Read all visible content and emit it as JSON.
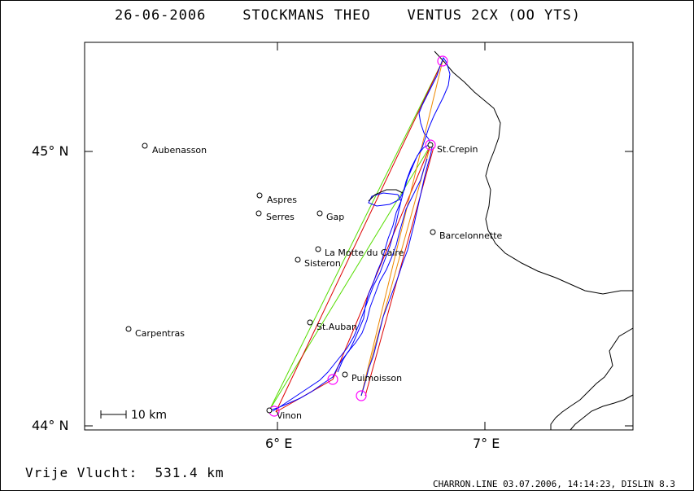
{
  "title": "26-06-2006    STOCKMANS THEO    VENTUS 2CX (OO YTS)",
  "footer": {
    "distance": "Vrije Vlucht:  531.4 km",
    "info": "CHARRON.LINE 03.07.2006, 14:14:23, DISLIN 8.3"
  },
  "axes": {
    "lat_labels": [
      "45° N",
      "44° N"
    ],
    "lon_labels": [
      "6° E",
      "7° E"
    ]
  },
  "scale_label": "10 km",
  "colors": {
    "track": "#0000ff",
    "task_leg": "#dd0000",
    "task_leg_alt": "#55dd00",
    "task_leg_orange": "#ee8800",
    "turnpoint": "#ff00ff",
    "border": "#000000"
  },
  "places": [
    {
      "name": "Aubenasson"
    },
    {
      "name": "Aspres"
    },
    {
      "name": "Serres"
    },
    {
      "name": "Gap"
    },
    {
      "name": "La Motte du Caire"
    },
    {
      "name": "Sisteron"
    },
    {
      "name": "Barcelonnette"
    },
    {
      "name": "St.Crepin"
    },
    {
      "name": "St.Auban"
    },
    {
      "name": "Carpentras"
    },
    {
      "name": "Puimoisson"
    },
    {
      "name": "Vinon"
    }
  ]
}
